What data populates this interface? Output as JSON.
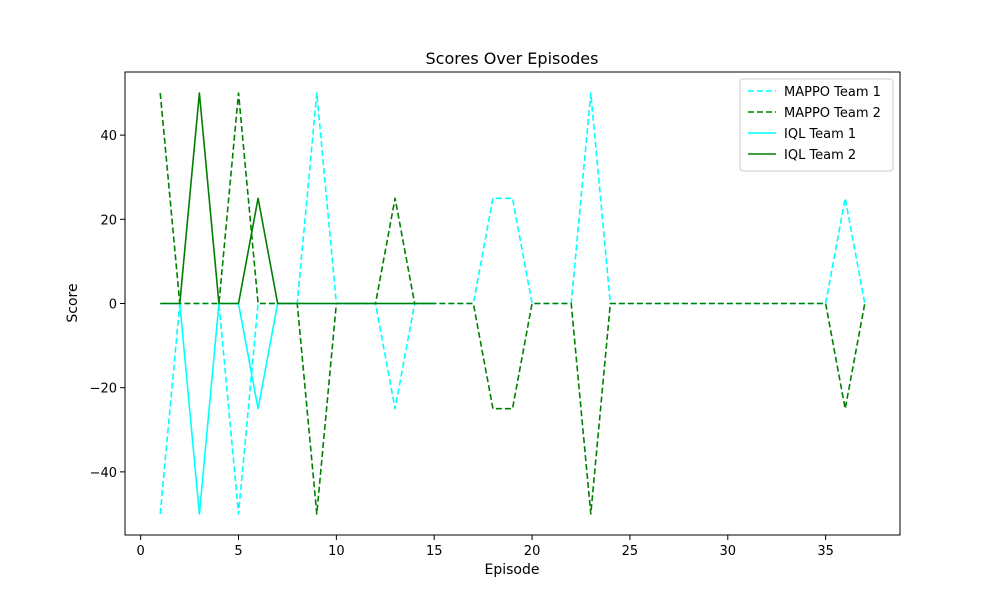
{
  "chart_data": {
    "type": "line",
    "title": "Scores Over Episodes",
    "xlabel": "Episode",
    "ylabel": "Score",
    "xlim": [
      -0.8,
      38.8
    ],
    "ylim": [
      -55,
      55
    ],
    "xticks": [
      0,
      5,
      10,
      15,
      20,
      25,
      30,
      35
    ],
    "yticks": [
      -40,
      -20,
      0,
      20,
      40
    ],
    "grid": false,
    "legend_position": "top-right",
    "series": [
      {
        "name": "MAPPO Team 1",
        "color": "#00ffff",
        "style": "dashed",
        "x": [
          1,
          2,
          3,
          4,
          5,
          6,
          7,
          8,
          9,
          10,
          11,
          12,
          13,
          14,
          15,
          16,
          17,
          18,
          19,
          20,
          21,
          22,
          23,
          24,
          25,
          26,
          27,
          28,
          29,
          30,
          31,
          32,
          33,
          34,
          35,
          36,
          37
        ],
        "y": [
          -50,
          0,
          0,
          0,
          -50,
          0,
          0,
          0,
          50,
          0,
          0,
          0,
          -25,
          0,
          0,
          0,
          0,
          25,
          25,
          0,
          0,
          0,
          50,
          0,
          0,
          0,
          0,
          0,
          0,
          0,
          0,
          0,
          0,
          0,
          0,
          25,
          0
        ]
      },
      {
        "name": "MAPPO Team 2",
        "color": "#008000",
        "style": "dashed",
        "x": [
          1,
          2,
          3,
          4,
          5,
          6,
          7,
          8,
          9,
          10,
          11,
          12,
          13,
          14,
          15,
          16,
          17,
          18,
          19,
          20,
          21,
          22,
          23,
          24,
          25,
          26,
          27,
          28,
          29,
          30,
          31,
          32,
          33,
          34,
          35,
          36,
          37
        ],
        "y": [
          50,
          0,
          0,
          0,
          50,
          0,
          0,
          0,
          -50,
          0,
          0,
          0,
          25,
          0,
          0,
          0,
          0,
          -25,
          -25,
          0,
          0,
          0,
          -50,
          0,
          0,
          0,
          0,
          0,
          0,
          0,
          0,
          0,
          0,
          0,
          0,
          -25,
          0
        ]
      },
      {
        "name": "IQL Team 1",
        "color": "#00ffff",
        "style": "solid",
        "x": [
          1,
          2,
          3,
          4,
          5,
          6,
          7,
          8,
          9,
          10,
          11,
          12,
          13,
          14,
          15
        ],
        "y": [
          0,
          0,
          -50,
          0,
          0,
          -25,
          0,
          0,
          0,
          0,
          0,
          0,
          0,
          0,
          0
        ]
      },
      {
        "name": "IQL Team 2",
        "color": "#008000",
        "style": "solid",
        "x": [
          1,
          2,
          3,
          4,
          5,
          6,
          7,
          8,
          9,
          10,
          11,
          12,
          13,
          14,
          15
        ],
        "y": [
          0,
          0,
          50,
          0,
          0,
          25,
          0,
          0,
          0,
          0,
          0,
          0,
          0,
          0,
          0
        ]
      }
    ]
  }
}
